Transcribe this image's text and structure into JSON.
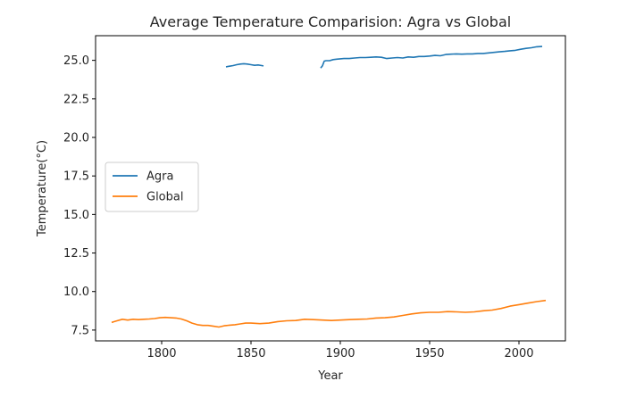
{
  "chart_data": {
    "type": "line",
    "title": "Average Temperature Comparision: Agra vs Global",
    "xlabel": "Year",
    "ylabel": "Temperature(°C)",
    "xlim": [
      1763,
      2026
    ],
    "ylim": [
      6.8,
      26.6
    ],
    "xticks": [
      1800,
      1850,
      1900,
      1950,
      2000
    ],
    "yticks": [
      7.5,
      10.0,
      12.5,
      15.0,
      17.5,
      20.0,
      22.5,
      25.0
    ],
    "ytick_labels": [
      "7.5",
      "10.0",
      "12.5",
      "15.0",
      "17.5",
      "20.0",
      "22.5",
      "25.0"
    ],
    "legend_position": "center-left",
    "grid": false,
    "series": [
      {
        "name": "Agra",
        "color": "#1f77b4",
        "segments": [
          {
            "x": [
              1836,
              1838,
              1840,
              1842,
              1844,
              1846,
              1848,
              1850,
              1852,
              1854,
              1856,
              1857
            ],
            "y": [
              24.58,
              24.62,
              24.66,
              24.72,
              24.76,
              24.78,
              24.76,
              24.72,
              24.68,
              24.7,
              24.66,
              24.64
            ]
          },
          {
            "x": [
              1889,
              1890,
              1891,
              1892,
              1894,
              1896,
              1898,
              1900,
              1902,
              1905,
              1908,
              1911,
              1914,
              1917,
              1920,
              1923,
              1926,
              1929,
              1932,
              1935,
              1938,
              1941,
              1944,
              1947,
              1950,
              1953,
              1956,
              1959,
              1962,
              1965,
              1968,
              1971,
              1974,
              1977,
              1980,
              1983,
              1986,
              1989,
              1992,
              1995,
              1998,
              2001,
              2004,
              2007,
              2010,
              2013
            ],
            "y": [
              24.5,
              24.65,
              24.95,
              24.98,
              24.98,
              25.05,
              25.08,
              25.1,
              25.12,
              25.12,
              25.15,
              25.18,
              25.18,
              25.2,
              25.22,
              25.2,
              25.12,
              25.15,
              25.18,
              25.15,
              25.22,
              25.2,
              25.25,
              25.25,
              25.28,
              25.32,
              25.3,
              25.38,
              25.4,
              25.42,
              25.4,
              25.42,
              25.42,
              25.45,
              25.45,
              25.48,
              25.52,
              25.55,
              25.58,
              25.62,
              25.65,
              25.72,
              25.78,
              25.82,
              25.88,
              25.9
            ]
          }
        ]
      },
      {
        "name": "Global",
        "color": "#ff7f0e",
        "segments": [
          {
            "x": [
              1772,
              1775,
              1778,
              1781,
              1784,
              1787,
              1790,
              1793,
              1796,
              1799,
              1802,
              1805,
              1808,
              1811,
              1814,
              1817,
              1820,
              1823,
              1826,
              1829,
              1832,
              1835,
              1838,
              1841,
              1844,
              1847,
              1850,
              1855,
              1860,
              1865,
              1870,
              1875,
              1880,
              1885,
              1890,
              1895,
              1900,
              1905,
              1910,
              1915,
              1920,
              1925,
              1930,
              1935,
              1940,
              1945,
              1950,
              1955,
              1960,
              1965,
              1970,
              1975,
              1980,
              1985,
              1990,
              1995,
              2000,
              2005,
              2010,
              2015
            ],
            "y": [
              8.0,
              8.1,
              8.2,
              8.15,
              8.2,
              8.18,
              8.2,
              8.22,
              8.25,
              8.3,
              8.32,
              8.3,
              8.28,
              8.22,
              8.1,
              7.95,
              7.85,
              7.8,
              7.8,
              7.75,
              7.7,
              7.78,
              7.82,
              7.85,
              7.9,
              7.95,
              7.95,
              7.92,
              7.95,
              8.05,
              8.1,
              8.12,
              8.2,
              8.18,
              8.15,
              8.12,
              8.15,
              8.18,
              8.2,
              8.22,
              8.28,
              8.3,
              8.35,
              8.45,
              8.55,
              8.62,
              8.65,
              8.65,
              8.7,
              8.68,
              8.65,
              8.68,
              8.75,
              8.8,
              8.9,
              9.05,
              9.15,
              9.25,
              9.35,
              9.42
            ]
          }
        ]
      }
    ]
  }
}
